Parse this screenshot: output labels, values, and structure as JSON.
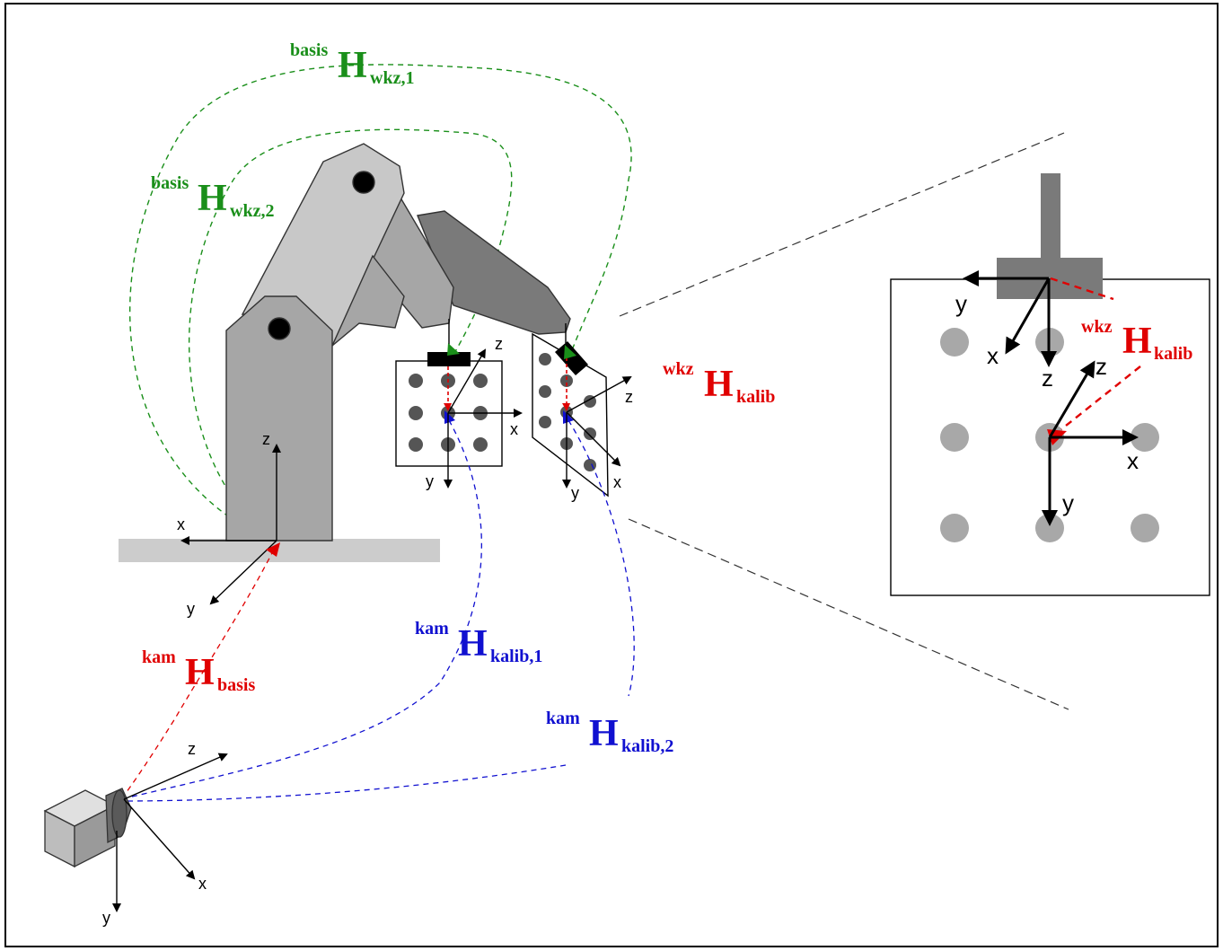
{
  "colors": {
    "green": "#1a8f1a",
    "red": "#e00000",
    "blue": "#1010d0",
    "arm_light": "#c8c8c8",
    "arm_mid": "#a6a6a6",
    "arm_dark": "#7a7a7a",
    "base": "#cccccc",
    "dot_dark": "#555555",
    "dot_light": "#a8a8a8"
  },
  "labels": {
    "h_basis_wkz1": {
      "sup": "basis",
      "main": "H",
      "sub": "wkz,1"
    },
    "h_basis_wkz2": {
      "sup": "basis",
      "main": "H",
      "sub": "wkz,2"
    },
    "h_wkz_kalib": {
      "sup": "wkz",
      "main": "H",
      "sub": "kalib"
    },
    "h_wkz_kalib_zoom": {
      "sup": "wkz",
      "main": "H",
      "sub": "kalib"
    },
    "h_kam_basis": {
      "sup": "kam",
      "main": "H",
      "sub": "basis"
    },
    "h_kam_kalib1": {
      "sup": "kam",
      "main": "H",
      "sub": "kalib,1"
    },
    "h_kam_kalib2": {
      "sup": "kam",
      "main": "H",
      "sub": "kalib,2"
    }
  },
  "axes": {
    "x": "x",
    "y": "y",
    "z": "z"
  }
}
